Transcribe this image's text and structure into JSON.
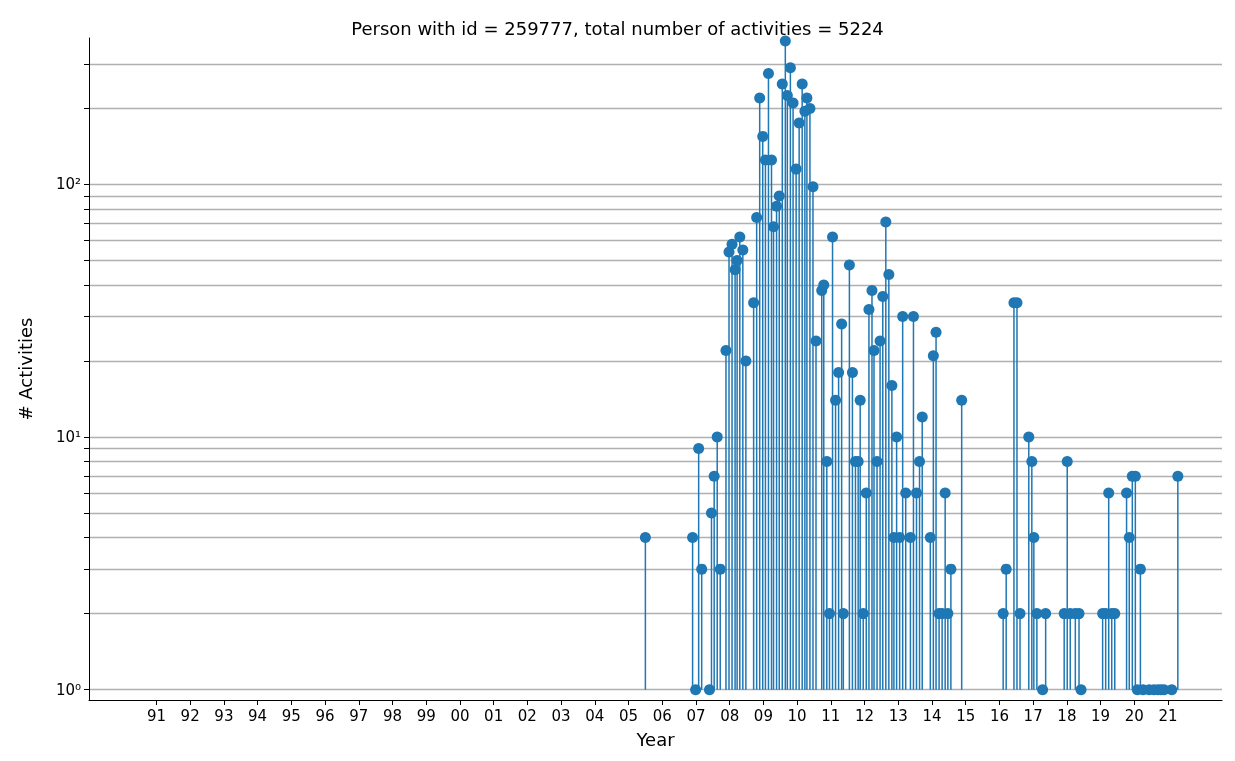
{
  "chart_data": {
    "type": "lollipop",
    "title": "Person with id = 259777, total number of activities = 5224",
    "xlabel": "Year",
    "ylabel": "# Activities",
    "log": "y",
    "grid": "y",
    "marker": "circle",
    "xlim": [
      1989,
      2022.6
    ],
    "ylim": [
      0.91,
      380
    ],
    "xticks": [
      {
        "value": 1991,
        "label": "91"
      },
      {
        "value": 1992,
        "label": "92"
      },
      {
        "value": 1993,
        "label": "93"
      },
      {
        "value": 1994,
        "label": "94"
      },
      {
        "value": 1995,
        "label": "95"
      },
      {
        "value": 1996,
        "label": "96"
      },
      {
        "value": 1997,
        "label": "97"
      },
      {
        "value": 1998,
        "label": "98"
      },
      {
        "value": 1999,
        "label": "99"
      },
      {
        "value": 2000,
        "label": "00"
      },
      {
        "value": 2001,
        "label": "01"
      },
      {
        "value": 2002,
        "label": "02"
      },
      {
        "value": 2003,
        "label": "03"
      },
      {
        "value": 2004,
        "label": "04"
      },
      {
        "value": 2005,
        "label": "05"
      },
      {
        "value": 2006,
        "label": "06"
      },
      {
        "value": 2007,
        "label": "07"
      },
      {
        "value": 2008,
        "label": "08"
      },
      {
        "value": 2009,
        "label": "09"
      },
      {
        "value": 2010,
        "label": "10"
      },
      {
        "value": 2011,
        "label": "11"
      },
      {
        "value": 2012,
        "label": "12"
      },
      {
        "value": 2013,
        "label": "13"
      },
      {
        "value": 2014,
        "label": "14"
      },
      {
        "value": 2015,
        "label": "15"
      },
      {
        "value": 2016,
        "label": "16"
      },
      {
        "value": 2017,
        "label": "17"
      },
      {
        "value": 2018,
        "label": "18"
      },
      {
        "value": 2019,
        "label": "19"
      },
      {
        "value": 2020,
        "label": "20"
      },
      {
        "value": 2021,
        "label": "21"
      }
    ],
    "yticks": [
      {
        "value": 1,
        "label": "10⁰"
      },
      {
        "value": 2,
        "label": null
      },
      {
        "value": 3,
        "label": null
      },
      {
        "value": 4,
        "label": null
      },
      {
        "value": 5,
        "label": null
      },
      {
        "value": 6,
        "label": null
      },
      {
        "value": 7,
        "label": null
      },
      {
        "value": 8,
        "label": null
      },
      {
        "value": 9,
        "label": null
      },
      {
        "value": 10,
        "label": "10¹"
      },
      {
        "value": 20,
        "label": null
      },
      {
        "value": 30,
        "label": null
      },
      {
        "value": 40,
        "label": null
      },
      {
        "value": 50,
        "label": null
      },
      {
        "value": 60,
        "label": null
      },
      {
        "value": 70,
        "label": null
      },
      {
        "value": 80,
        "label": null
      },
      {
        "value": 90,
        "label": null
      },
      {
        "value": 100,
        "label": "10²"
      },
      {
        "value": 200,
        "label": null
      },
      {
        "value": 300,
        "label": null
      }
    ],
    "series": [
      {
        "color": "#1f77b4",
        "x": [
          2005.5,
          2006.9,
          2006.99,
          2007.08,
          2007.17,
          2007.4,
          2007.46,
          2007.54,
          2007.63,
          2007.72,
          2007.89,
          2007.98,
          2008.07,
          2008.16,
          2008.22,
          2008.3,
          2008.39,
          2008.48,
          2008.71,
          2008.8,
          2008.89,
          2008.98,
          2009.06,
          2009.15,
          2009.24,
          2009.3,
          2009.39,
          2009.47,
          2009.56,
          2009.65,
          2009.71,
          2009.8,
          2009.88,
          2009.97,
          2010.06,
          2010.15,
          2010.23,
          2010.29,
          2010.38,
          2010.47,
          2010.56,
          2010.73,
          2010.79,
          2010.88,
          2010.96,
          2011.05,
          2011.14,
          2011.23,
          2011.32,
          2011.37,
          2011.55,
          2011.64,
          2011.73,
          2011.81,
          2011.87,
          2011.96,
          2012.05,
          2012.13,
          2012.22,
          2012.28,
          2012.37,
          2012.46,
          2012.54,
          2012.63,
          2012.72,
          2012.81,
          2012.87,
          2012.95,
          2013.04,
          2013.13,
          2013.22,
          2013.36,
          2013.45,
          2013.54,
          2013.63,
          2013.71,
          2013.95,
          2014.04,
          2014.12,
          2014.21,
          2014.3,
          2014.39,
          2014.47,
          2014.56,
          2014.88,
          2016.11,
          2016.2,
          2016.43,
          2016.52,
          2016.61,
          2016.87,
          2016.96,
          2017.02,
          2017.11,
          2017.28,
          2017.37,
          2017.92,
          2018.01,
          2018.1,
          2018.25,
          2018.36,
          2018.42,
          2019.06,
          2019.15,
          2019.24,
          2019.33,
          2019.42,
          2019.77,
          2019.85,
          2019.94,
          2020.03,
          2020.09,
          2020.18,
          2020.26,
          2020.44,
          2020.58,
          2020.7,
          2020.79,
          2020.88,
          2021.11,
          2021.29
        ],
        "values": [
          4,
          4,
          1,
          9,
          3,
          1,
          5,
          7,
          10,
          3,
          22,
          54,
          58,
          46,
          50,
          62,
          55,
          20,
          34,
          74,
          220,
          155,
          125,
          275,
          125,
          68,
          82,
          90,
          250,
          370,
          225,
          290,
          210,
          115,
          175,
          250,
          195,
          220,
          200,
          98,
          24,
          38,
          40,
          8,
          2,
          62,
          14,
          18,
          28,
          2,
          48,
          18,
          8,
          8,
          14,
          2,
          6,
          32,
          38,
          22,
          8,
          24,
          36,
          71,
          44,
          16,
          4,
          10,
          4,
          30,
          6,
          4,
          30,
          6,
          8,
          12,
          4,
          21,
          26,
          2,
          2,
          6,
          2,
          3,
          14,
          2,
          3,
          34,
          34,
          2,
          10,
          8,
          4,
          2,
          1,
          2,
          2,
          8,
          2,
          2,
          2,
          1,
          2,
          2,
          6,
          2,
          2,
          6,
          4,
          7,
          7,
          1,
          3,
          1,
          1,
          1,
          1,
          1,
          1,
          1,
          7
        ]
      }
    ]
  }
}
